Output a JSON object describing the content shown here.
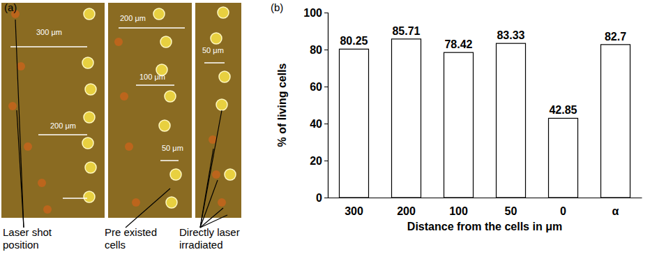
{
  "chart_data": {
    "type": "bar",
    "x_label": "Distance from the cells in μm",
    "y_label": "% of living cells",
    "categories": [
      "300",
      "200",
      "100",
      "50",
      "0",
      "α"
    ],
    "values": [
      80.25,
      85.71,
      78.42,
      83.33,
      42.85,
      82.7
    ],
    "color": "#ffffff",
    "ylim": [
      0,
      100
    ],
    "yticks": [
      0,
      20,
      40,
      60,
      80,
      100
    ],
    "grid": false,
    "data_labels": true
  },
  "figure": {
    "panel_labels": [
      "(a)",
      "(b)"
    ]
  },
  "photo": {
    "scale_labels": [
      "300 μm",
      "200 μm",
      "200 μm",
      "100 μm",
      "50 μm",
      "50 μm"
    ],
    "annotations": [
      {
        "lines": [
          "Laser shot",
          "position"
        ]
      },
      {
        "lines": [
          "Pre existed",
          "cells"
        ]
      },
      {
        "lines": [
          "Directly laser",
          "irradiated"
        ]
      }
    ]
  }
}
